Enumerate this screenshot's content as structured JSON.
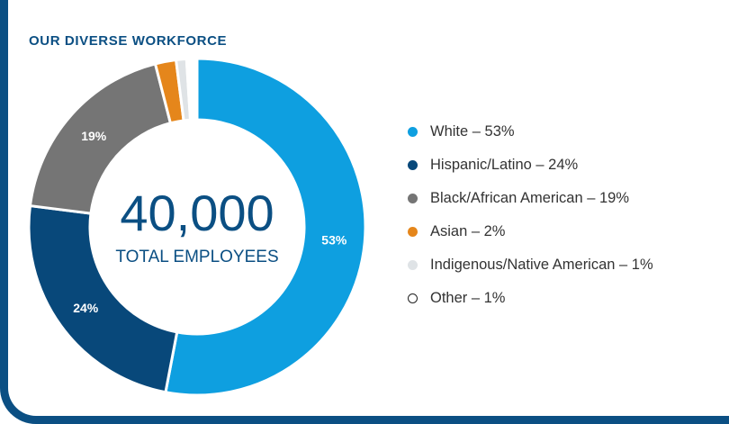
{
  "title": "OUR DIVERSE WORKFORCE",
  "center": {
    "value": "40,000",
    "caption": "TOTAL EMPLOYEES"
  },
  "chart_data": {
    "type": "pie",
    "title": "OUR DIVERSE WORKFORCE",
    "variant": "donut",
    "slices": [
      {
        "label": "White",
        "legend": "White – 53%",
        "value": 53,
        "data_label": "53%",
        "color": "#0e9fe0"
      },
      {
        "label": "Hispanic/Latino",
        "legend": "Hispanic/Latino – 24%",
        "value": 24,
        "data_label": "24%",
        "color": "#08487a"
      },
      {
        "label": "Black/African American",
        "legend": "Black/African American – 19%",
        "value": 19,
        "data_label": "19%",
        "color": "#757575"
      },
      {
        "label": "Asian",
        "legend": "Asian – 2%",
        "value": 2,
        "data_label": "",
        "color": "#e5861b"
      },
      {
        "label": "Indigenous/Native American",
        "legend": "Indigenous/Native American – 1%",
        "value": 1,
        "data_label": "",
        "color": "#dfe3e6"
      },
      {
        "label": "Other",
        "legend": "Other – 1%",
        "value": 1,
        "data_label": "",
        "color": "#ffffff",
        "outlined": true
      }
    ],
    "legend_position": "right"
  }
}
